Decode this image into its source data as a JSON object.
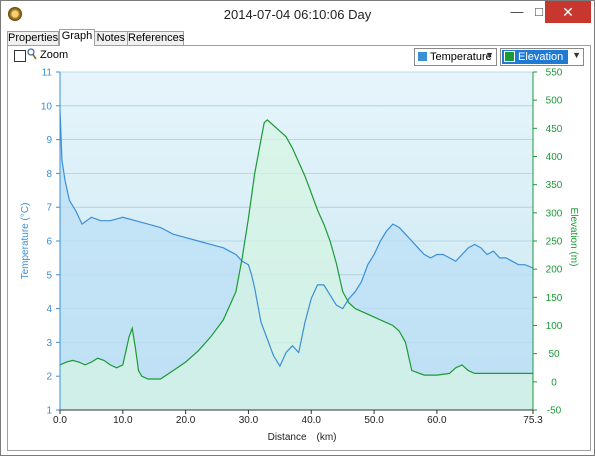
{
  "window": {
    "title": "2014-07-04 06:10:06 Day",
    "minimize_glyph": "—",
    "maximize_glyph": "□",
    "close_glyph": "✕",
    "icon": "compass-icon"
  },
  "tabs": [
    {
      "label": "Properties",
      "active": false
    },
    {
      "label": "Graph",
      "active": true
    },
    {
      "label": "Notes",
      "active": false
    },
    {
      "label": "References",
      "active": false
    }
  ],
  "toolbar": {
    "zoom_label": "Zoom",
    "zoom_checked": false,
    "left_series_select": "Temperature",
    "right_series_select": "Elevation"
  },
  "colors": {
    "temperature": "#3b8fd6",
    "temperature_fill": "#bcdff5",
    "elevation": "#1b9a37",
    "elevation_fill": "#d6f5e2",
    "plot_background": "#d6eef7",
    "close_button": "#c7372f",
    "elevation_select_bg": "#1f7ad6"
  },
  "chart_data": {
    "type": "line",
    "xlabel": "Distance",
    "xunit": "(km)",
    "x_ticks": [
      "0.0",
      "10.0",
      "20.0",
      "30.0",
      "40.0",
      "50.0",
      "60.0",
      "75.3"
    ],
    "xlim": [
      0,
      75.3
    ],
    "grid": true,
    "y_left": {
      "label": "Temperature (°C)",
      "ylim": [
        1,
        11
      ],
      "ticks": [
        "1",
        "2",
        "3",
        "4",
        "5",
        "6",
        "7",
        "8",
        "9",
        "10",
        "11"
      ]
    },
    "y_right": {
      "label": "Elevation (m)",
      "ylim": [
        -50,
        550
      ],
      "ticks": [
        "-50",
        "0",
        "50",
        "100",
        "150",
        "200",
        "250",
        "300",
        "350",
        "400",
        "450",
        "500",
        "550"
      ]
    },
    "series": [
      {
        "name": "Temperature",
        "axis": "left",
        "x": [
          0,
          0.3,
          0.8,
          1.5,
          2.5,
          3.5,
          5,
          6.5,
          8,
          10,
          12,
          14,
          16,
          18,
          20,
          22,
          24,
          26,
          28,
          29,
          30,
          30.5,
          31,
          32,
          33,
          34,
          35,
          36,
          37,
          38,
          39,
          40,
          41,
          42,
          43,
          44,
          45,
          46,
          47,
          48,
          49,
          50,
          51,
          52,
          53,
          54,
          55,
          56,
          57,
          58,
          59,
          60,
          61,
          62,
          63,
          64,
          65,
          66,
          67,
          68,
          69,
          70,
          71,
          72,
          73,
          74,
          75.3
        ],
        "values": [
          9.9,
          8.4,
          7.8,
          7.2,
          6.9,
          6.5,
          6.7,
          6.6,
          6.6,
          6.7,
          6.6,
          6.5,
          6.4,
          6.2,
          6.1,
          6.0,
          5.9,
          5.8,
          5.6,
          5.4,
          5.3,
          5.0,
          4.6,
          3.6,
          3.1,
          2.6,
          2.3,
          2.7,
          2.9,
          2.7,
          3.6,
          4.3,
          4.7,
          4.7,
          4.4,
          4.1,
          4.0,
          4.3,
          4.5,
          4.8,
          5.3,
          5.6,
          6.0,
          6.3,
          6.5,
          6.4,
          6.2,
          6.0,
          5.8,
          5.6,
          5.5,
          5.6,
          5.6,
          5.5,
          5.4,
          5.6,
          5.8,
          5.9,
          5.8,
          5.6,
          5.7,
          5.5,
          5.5,
          5.4,
          5.3,
          5.3,
          5.2
        ]
      },
      {
        "name": "Elevation",
        "axis": "right",
        "x": [
          0,
          1,
          2,
          3,
          4,
          5,
          6,
          7,
          8,
          9,
          10,
          11,
          11.5,
          12,
          12.5,
          13,
          14,
          16,
          18,
          20,
          22,
          24,
          26,
          28,
          29,
          30,
          31,
          32,
          32.5,
          33,
          34,
          35,
          36,
          37,
          38,
          39,
          40,
          41,
          42,
          43,
          44,
          45,
          46,
          47,
          48,
          49,
          50,
          51,
          52,
          53,
          54,
          55,
          56,
          58,
          60,
          62,
          63,
          64,
          65,
          66,
          68,
          70,
          72,
          74,
          75.3
        ],
        "values": [
          30,
          35,
          38,
          35,
          30,
          35,
          42,
          38,
          30,
          25,
          30,
          80,
          95,
          60,
          20,
          10,
          5,
          5,
          20,
          35,
          55,
          80,
          110,
          160,
          220,
          290,
          370,
          430,
          460,
          465,
          455,
          445,
          435,
          415,
          390,
          365,
          335,
          305,
          280,
          250,
          210,
          160,
          140,
          130,
          125,
          120,
          115,
          110,
          105,
          100,
          90,
          70,
          20,
          12,
          12,
          15,
          25,
          30,
          20,
          15,
          15,
          15,
          15,
          15,
          15
        ]
      }
    ]
  }
}
